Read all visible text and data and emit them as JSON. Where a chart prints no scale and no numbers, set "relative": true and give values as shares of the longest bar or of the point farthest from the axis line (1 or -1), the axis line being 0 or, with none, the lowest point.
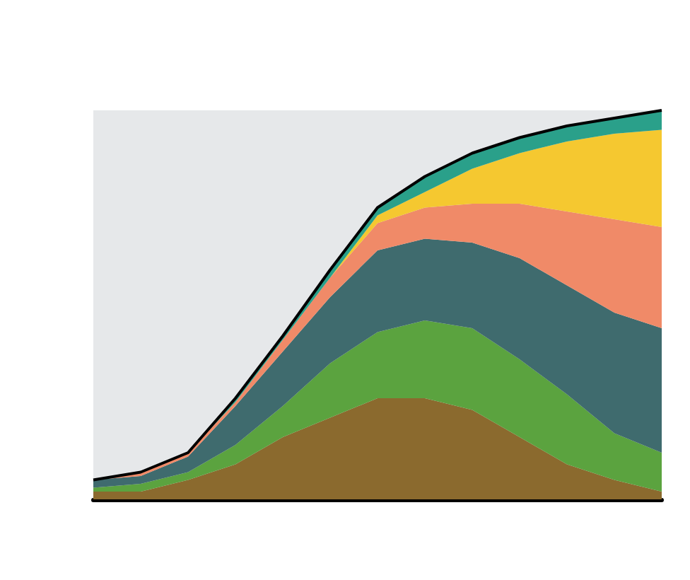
{
  "chart_data": {
    "type": "area",
    "relative": true,
    "stacked": true,
    "categories": [
      null,
      null,
      null,
      null,
      null,
      null,
      null,
      null,
      null,
      null,
      null,
      null,
      null
    ],
    "series": [
      {
        "color": "#8b6a2e",
        "values": [
          0.02,
          0.02,
          0.05,
          0.09,
          0.16,
          0.21,
          0.26,
          0.26,
          0.23,
          0.16,
          0.09,
          0.05,
          0.02
        ]
      },
      {
        "color": "#5ba33f",
        "values": [
          0.01,
          0.02,
          0.02,
          0.05,
          0.08,
          0.14,
          0.17,
          0.2,
          0.21,
          0.2,
          0.18,
          0.12,
          0.1
        ]
      },
      {
        "color": "#3f6b6e",
        "values": [
          0.02,
          0.02,
          0.04,
          0.1,
          0.14,
          0.17,
          0.21,
          0.21,
          0.22,
          0.26,
          0.28,
          0.31,
          0.32
        ]
      },
      {
        "color": "#f08a68",
        "values": [
          0,
          0.01,
          0.01,
          0.01,
          0.03,
          0.05,
          0.07,
          0.08,
          0.1,
          0.14,
          0.19,
          0.24,
          0.26
        ]
      },
      {
        "color": "#f5c830",
        "values": [
          0,
          0,
          0,
          0,
          0,
          0,
          0.02,
          0.04,
          0.09,
          0.13,
          0.18,
          0.22,
          0.25
        ]
      },
      {
        "color": "#2aa08a",
        "values": [
          0,
          0,
          0,
          0.01,
          0.01,
          0.02,
          0.02,
          0.04,
          0.04,
          0.04,
          0.04,
          0.04,
          0.05
        ]
      }
    ]
  }
}
